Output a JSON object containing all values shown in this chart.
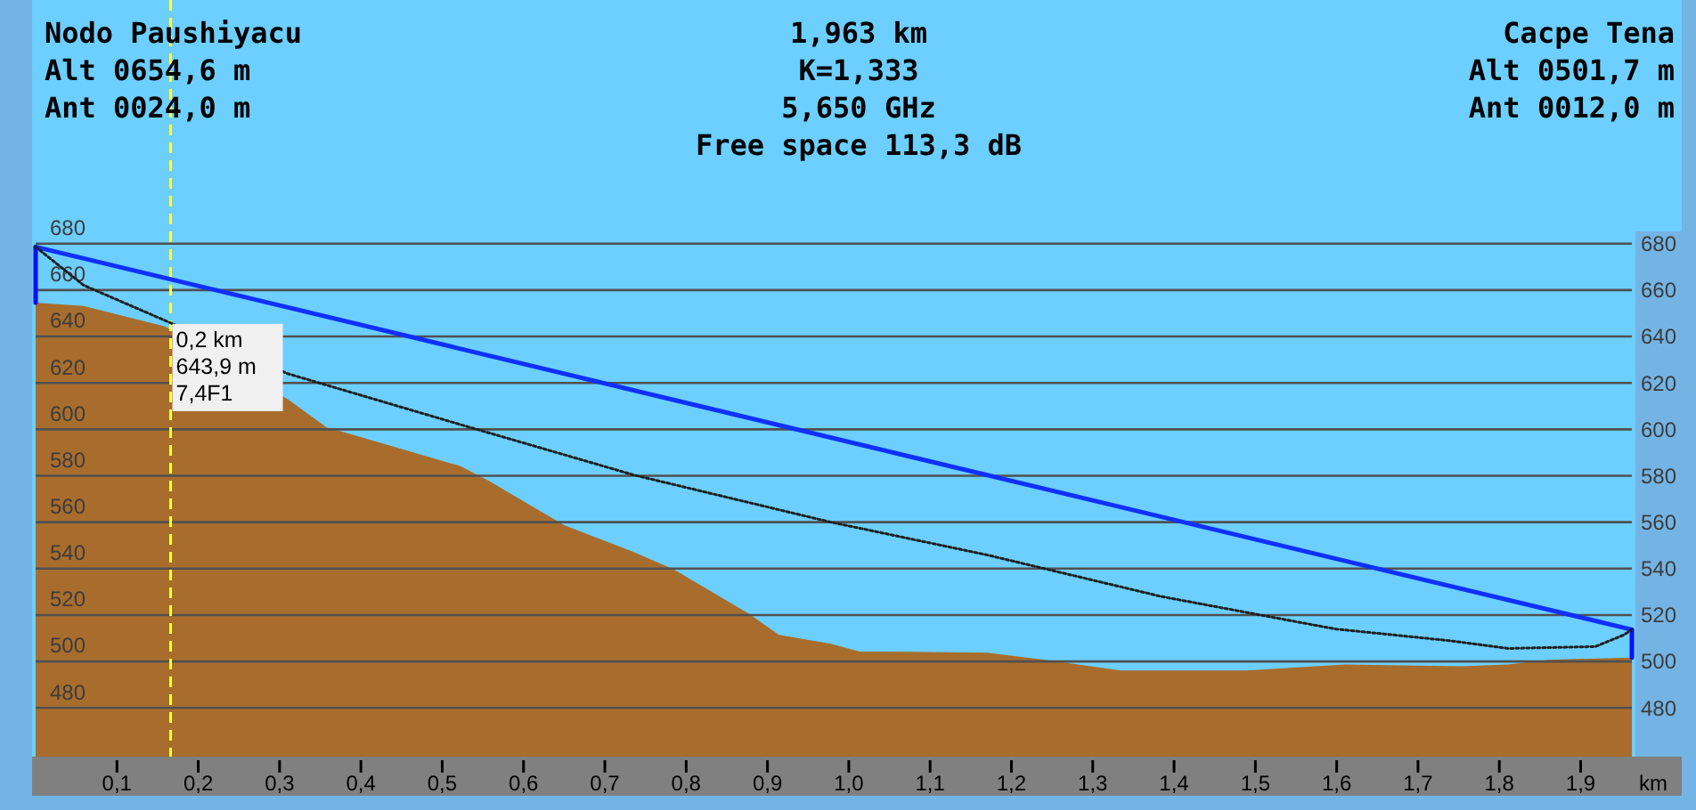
{
  "chart_data": {
    "type": "area",
    "annotations": [
      "Nodo Paushiyacu",
      "Alt 0654,6 m",
      "Ant 0024,0 m",
      "1,963 km",
      "K=1,333",
      "5,650 GHz",
      "Free space 113,3 dB",
      "Cacpe Tena",
      "Alt 0501,7 m",
      "Ant 0012,0 m",
      {
        "text": "0,2 km\n643,9 m\n7,4F1",
        "x": 0.166,
        "y": 643.9
      }
    ],
    "xlabel": "km",
    "series": [
      {
        "color": "#a86d2c",
        "x": [
          0,
          0.059,
          0.159,
          0.31,
          0.358,
          0.379,
          0.522,
          0.557,
          0.65,
          0.735,
          0.785,
          0.878,
          0.914,
          0.978,
          1.013,
          1.17,
          1.241,
          1.334,
          1.49,
          1.547,
          1.611,
          1.754,
          1.811,
          1.861,
          1.963
        ],
        "values": [
          654.6,
          653.2,
          644.3,
          613,
          600.8,
          598.8,
          584.2,
          577.9,
          558.7,
          547.2,
          539.6,
          520.4,
          511.4,
          507.6,
          504.3,
          503.8,
          500.7,
          496.1,
          496.1,
          497.4,
          498.7,
          497.9,
          498.7,
          500.7,
          501.7
        ]
      },
      {
        "type": "line",
        "color": "#1030ff",
        "x": [
          0,
          1.963
        ],
        "values": [
          678.6,
          513.7
        ]
      },
      {
        "type": "line",
        "color": "#0010ff",
        "x": [
          0,
          0
        ],
        "values": [
          654.6,
          678.6
        ]
      },
      {
        "type": "line",
        "color": "#0010ff",
        "x": [
          1.963,
          1.963
        ],
        "values": [
          501.7,
          513.7
        ]
      },
      {
        "type": "line",
        "color": "#202020",
        "line_style": "dotted",
        "x": [
          0,
          0.059,
          0.31,
          0.522,
          0.735,
          0.978,
          1.17,
          1.384,
          1.598,
          1.74,
          1.811,
          1.918,
          1.953,
          1.963
        ],
        "values": [
          678.6,
          662.1,
          624,
          602.1,
          580.4,
          560,
          545.9,
          528,
          514,
          508.9,
          505.6,
          506.4,
          511.4,
          513.7
        ]
      }
    ],
    "xlim": [
      0,
      1.963
    ],
    "ylim": [
      459,
      785
    ],
    "xticks": [
      {
        "value": 0.1,
        "label": "0,1"
      },
      {
        "value": 0.2,
        "label": "0,2"
      },
      {
        "value": 0.3,
        "label": "0,3"
      },
      {
        "value": 0.4,
        "label": "0,4"
      },
      {
        "value": 0.5,
        "label": "0,5"
      },
      {
        "value": 0.6,
        "label": "0,6"
      },
      {
        "value": 0.7,
        "label": "0,7"
      },
      {
        "value": 0.8,
        "label": "0,8"
      },
      {
        "value": 0.9,
        "label": "0,9"
      },
      {
        "value": 1.0,
        "label": "1,0"
      },
      {
        "value": 1.1,
        "label": "1,1"
      },
      {
        "value": 1.2,
        "label": "1,2"
      },
      {
        "value": 1.3,
        "label": "1,3"
      },
      {
        "value": 1.4,
        "label": "1,4"
      },
      {
        "value": 1.5,
        "label": "1,5"
      },
      {
        "value": 1.6,
        "label": "1,6"
      },
      {
        "value": 1.7,
        "label": "1,7"
      },
      {
        "value": 1.8,
        "label": "1,8"
      },
      {
        "value": 1.9,
        "label": "1,9"
      }
    ],
    "yticks": [
      480,
      500,
      520,
      540,
      560,
      580,
      600,
      620,
      640,
      660,
      680
    ],
    "y2lim": [
      459,
      785
    ],
    "y2ticks": [
      480,
      500,
      520,
      540,
      560,
      580,
      600,
      620,
      640,
      660,
      680
    ],
    "grid": "y",
    "ref_lines": [
      {
        "axis": "x",
        "value": 0.166,
        "color": "#ffff40",
        "line_style": "dashed"
      }
    ]
  }
}
